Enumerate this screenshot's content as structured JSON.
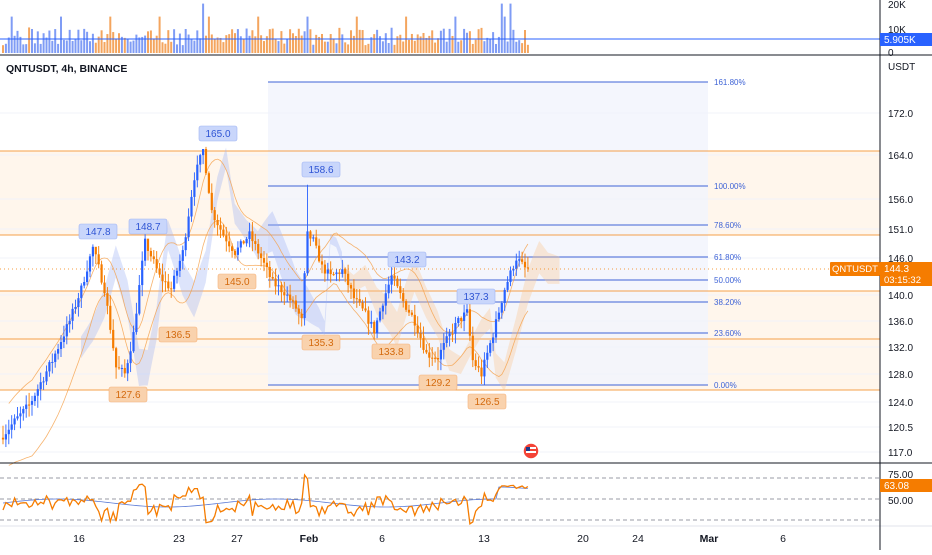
{
  "chart": {
    "symbol_title": "QNTUSDT, 4h, BINANCE",
    "currency_label": "USDT",
    "price_ticks": [
      "172.0",
      "164.0",
      "156.0",
      "151.0",
      "146.0",
      "140.0",
      "136.0",
      "132.0",
      "128.0",
      "124.0",
      "120.5",
      "117.0"
    ],
    "volume_ticks": [
      "20K",
      "10K",
      "0"
    ],
    "rsi_ticks": [
      "75.00",
      "50.00"
    ],
    "time_ticks": [
      "16",
      "23",
      "27",
      "Feb",
      "6",
      "13",
      "20",
      "24",
      "Mar",
      "6"
    ],
    "volume_badge": "5.905K",
    "price_badge": {
      "symbol": "QNTUSDT",
      "price": "144.3",
      "countdown": "03:15:32"
    },
    "rsi_badge": "63.08",
    "fib_levels": [
      "161.80%",
      "100.00%",
      "78.60%",
      "61.80%",
      "50.00%",
      "38.20%",
      "23.60%",
      "0.00%"
    ],
    "high_labels": [
      "147.8",
      "148.7",
      "165.0",
      "158.6",
      "143.2",
      "137.3"
    ],
    "low_labels": [
      "127.6",
      "136.5",
      "145.0",
      "135.3",
      "133.8",
      "129.2",
      "126.5"
    ],
    "colors": {
      "up": "#2962ff",
      "down": "#f57c00",
      "accent_blue": "#2962ff",
      "accent_orange": "#f57c00",
      "band_fill": "#fff4e8",
      "fib_fill": "#f3f6ff"
    }
  }
}
